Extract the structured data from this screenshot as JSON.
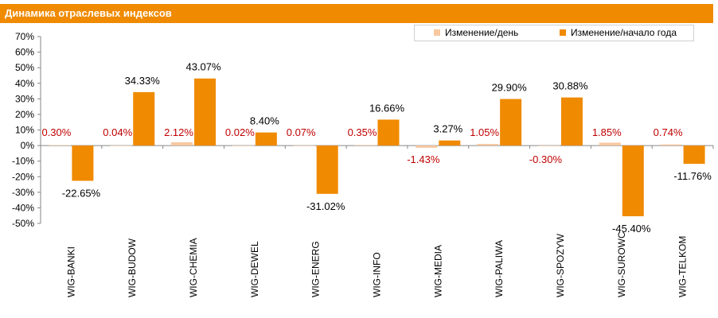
{
  "header": {
    "title": "Динамика отраслевых индексов"
  },
  "colors": {
    "header_bg": "#f08a00",
    "daily_color": "#f8c8a0",
    "ytd_color": "#f08a00",
    "daily_label_color": "#c00000",
    "ytd_label_color": "#000000"
  },
  "chart_data": {
    "type": "bar",
    "title": "Динамика отраслевых индексов",
    "xlabel": "",
    "ylabel": "",
    "ylim": [
      -50,
      70
    ],
    "yticks": [
      "70%",
      "60%",
      "50%",
      "40%",
      "30%",
      "20%",
      "10%",
      "0%",
      "-10%",
      "-20%",
      "-30%",
      "-40%",
      "-50%"
    ],
    "ytick_values": [
      70,
      60,
      50,
      40,
      30,
      20,
      10,
      0,
      -10,
      -20,
      -30,
      -40,
      -50
    ],
    "legend_position": "top-right",
    "grid": false,
    "categories": [
      "WIG-BANKI",
      "WIG-BUDOW",
      "WIG-CHEMIA",
      "WIG-DEWEL",
      "WIG-ENERG",
      "WIG-INFO",
      "WIG-MEDIA",
      "WIG-PALIWA",
      "WIG-SPOZYW",
      "WIG-SUROWC",
      "WIG-TELKOM"
    ],
    "series": [
      {
        "name": "Изменение/день",
        "values": [
          0.3,
          0.04,
          2.12,
          0.02,
          0.07,
          0.35,
          -1.43,
          1.05,
          -0.3,
          1.85,
          0.74
        ],
        "labels": [
          "0.30%",
          "0.04%",
          "2.12%",
          "0.02%",
          "0.07%",
          "0.35%",
          "-1.43%",
          "1.05%",
          "-0.30%",
          "1.85%",
          "0.74%"
        ]
      },
      {
        "name": "Изменение/начало года",
        "values": [
          -22.65,
          34.33,
          43.07,
          8.4,
          -31.02,
          16.66,
          3.27,
          29.9,
          30.88,
          -45.4,
          -11.76
        ],
        "labels": [
          "-22.65%",
          "34.33%",
          "43.07%",
          "8.40%",
          "-31.02%",
          "16.66%",
          "3.27%",
          "29.90%",
          "30.88%",
          "-45.40%",
          "-11.76%"
        ]
      }
    ]
  }
}
